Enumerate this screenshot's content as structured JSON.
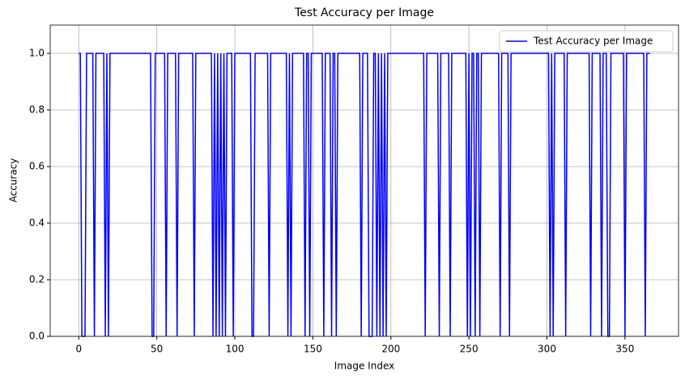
{
  "chart_data": {
    "type": "line",
    "title": "Test Accuracy per Image",
    "xlabel": "Image Index",
    "ylabel": "Accuracy",
    "x": [
      0,
      1,
      2,
      3,
      4,
      5,
      6,
      7,
      8,
      9,
      10,
      11,
      12,
      13,
      14,
      15,
      16,
      17,
      18,
      19,
      20,
      21,
      22,
      23,
      24,
      25,
      26,
      27,
      28,
      29,
      30,
      31,
      32,
      33,
      34,
      35,
      36,
      37,
      38,
      39,
      40,
      41,
      42,
      43,
      44,
      45,
      46,
      47,
      48,
      49,
      50,
      51,
      52,
      53,
      54,
      55,
      56,
      57,
      58,
      59,
      60,
      61,
      62,
      63,
      64,
      65,
      66,
      67,
      68,
      69,
      70,
      71,
      72,
      73,
      74,
      75,
      76,
      77,
      78,
      79,
      80,
      81,
      82,
      83,
      84,
      85,
      86,
      87,
      88,
      89,
      90,
      91,
      92,
      93,
      94,
      95,
      96,
      97,
      98,
      99,
      100,
      101,
      102,
      103,
      104,
      105,
      106,
      107,
      108,
      109,
      110,
      111,
      112,
      113,
      114,
      115,
      116,
      117,
      118,
      119,
      120,
      121,
      122,
      123,
      124,
      125,
      126,
      127,
      128,
      129,
      130,
      131,
      132,
      133,
      134,
      135,
      136,
      137,
      138,
      139,
      140,
      141,
      142,
      143,
      144,
      145,
      146,
      147,
      148,
      149,
      150,
      151,
      152,
      153,
      154,
      155,
      156,
      157,
      158,
      159,
      160,
      161,
      162,
      163,
      164,
      165,
      166,
      167,
      168,
      169,
      170,
      171,
      172,
      173,
      174,
      175,
      176,
      177,
      178,
      179,
      180,
      181,
      182,
      183,
      184,
      185,
      186,
      187,
      188,
      189,
      190,
      191,
      192,
      193,
      194,
      195,
      196,
      197,
      198,
      199,
      200,
      201,
      202,
      203,
      204,
      205,
      206,
      207,
      208,
      209,
      210,
      211,
      212,
      213,
      214,
      215,
      216,
      217,
      218,
      219,
      220,
      221,
      222,
      223,
      224,
      225,
      226,
      227,
      228,
      229,
      230,
      231,
      232,
      233,
      234,
      235,
      236,
      237,
      238,
      239,
      240,
      241,
      242,
      243,
      244,
      245,
      246,
      247,
      248,
      249,
      250,
      251,
      252,
      253,
      254,
      255,
      256,
      257,
      258,
      259,
      260,
      261,
      262,
      263,
      264,
      265,
      266,
      267,
      268,
      269,
      270,
      271,
      272,
      273,
      274,
      275,
      276,
      277,
      278,
      279,
      280,
      281,
      282,
      283,
      284,
      285,
      286,
      287,
      288,
      289,
      290,
      291,
      292,
      293,
      294,
      295,
      296,
      297,
      298,
      299,
      300,
      301,
      302,
      303,
      304,
      305,
      306,
      307,
      308,
      309,
      310,
      311,
      312,
      313,
      314,
      315,
      316,
      317,
      318,
      319,
      320,
      321,
      322,
      323,
      324,
      325,
      326,
      327,
      328,
      329,
      330,
      331,
      332,
      333,
      334,
      335,
      336,
      337,
      338,
      339,
      340,
      341,
      342,
      343,
      344,
      345,
      346,
      347,
      348,
      349,
      350,
      351,
      352,
      353,
      354,
      355,
      356,
      357,
      358,
      359,
      360,
      361,
      362,
      363,
      364,
      365,
      366
    ],
    "series": [
      {
        "name": "Test Accuracy per Image",
        "color": "#0000ff",
        "values": [
          1,
          1,
          0,
          0,
          0,
          1,
          1,
          1,
          1,
          1,
          0,
          1,
          1,
          1,
          1,
          1,
          1,
          0,
          1,
          0,
          1,
          1,
          1,
          1,
          1,
          1,
          1,
          1,
          1,
          1,
          1,
          1,
          1,
          1,
          1,
          1,
          1,
          1,
          1,
          1,
          1,
          1,
          1,
          1,
          1,
          1,
          1,
          0,
          0,
          1,
          1,
          1,
          1,
          1,
          1,
          1,
          0,
          1,
          1,
          1,
          1,
          1,
          1,
          0,
          1,
          1,
          1,
          1,
          1,
          1,
          1,
          1,
          1,
          1,
          0,
          1,
          1,
          1,
          1,
          1,
          1,
          1,
          1,
          1,
          1,
          1,
          0,
          1,
          0,
          1,
          0,
          1,
          0,
          1,
          0,
          1,
          1,
          1,
          1,
          0,
          1,
          1,
          1,
          1,
          1,
          1,
          1,
          1,
          1,
          1,
          1,
          0,
          0,
          1,
          1,
          1,
          1,
          1,
          1,
          1,
          1,
          1,
          0,
          1,
          1,
          1,
          1,
          1,
          1,
          1,
          1,
          1,
          1,
          1,
          0,
          1,
          0,
          1,
          1,
          1,
          1,
          1,
          1,
          1,
          1,
          0,
          1,
          1,
          0,
          1,
          1,
          1,
          1,
          1,
          1,
          1,
          1,
          0,
          1,
          1,
          1,
          1,
          0,
          1,
          1,
          0,
          1,
          1,
          1,
          1,
          1,
          1,
          1,
          1,
          1,
          1,
          1,
          1,
          1,
          1,
          1,
          0,
          1,
          1,
          1,
          1,
          0,
          0,
          0,
          1,
          1,
          0,
          1,
          0,
          1,
          0,
          1,
          0,
          1,
          1,
          1,
          1,
          1,
          1,
          1,
          1,
          1,
          1,
          1,
          1,
          1,
          1,
          1,
          1,
          1,
          1,
          1,
          1,
          1,
          1,
          1,
          1,
          0,
          1,
          1,
          1,
          1,
          1,
          1,
          1,
          1,
          0,
          1,
          1,
          1,
          1,
          1,
          1,
          0,
          1,
          1,
          1,
          1,
          1,
          1,
          1,
          1,
          1,
          1,
          0,
          1,
          0,
          1,
          1,
          0,
          1,
          1,
          0,
          1,
          1,
          1,
          1,
          1,
          1,
          1,
          1,
          1,
          1,
          1,
          1,
          0,
          1,
          1,
          1,
          1,
          1,
          0,
          1,
          1,
          1,
          1,
          1,
          1,
          1,
          1,
          1,
          1,
          1,
          1,
          1,
          1,
          1,
          1,
          1,
          1,
          1,
          1,
          1,
          1,
          1,
          1,
          1,
          0,
          1,
          0,
          1,
          1,
          1,
          1,
          1,
          1,
          1,
          0,
          1,
          1,
          1,
          1,
          1,
          1,
          1,
          1,
          1,
          1,
          1,
          1,
          1,
          1,
          1,
          0,
          1,
          1,
          1,
          1,
          1,
          1,
          0,
          1,
          1,
          1,
          0,
          0,
          1,
          1,
          1,
          1,
          1,
          1,
          1,
          1,
          1,
          0,
          1,
          1,
          1,
          1,
          1,
          1,
          1,
          1,
          1,
          1,
          1,
          1,
          0,
          1,
          1,
          1
        ]
      }
    ],
    "xlim": [
      -18.3,
      384.3
    ],
    "xticks": [
      0,
      50,
      100,
      150,
      200,
      250,
      300,
      350
    ],
    "ylim": [
      0,
      1.1
    ],
    "yticks": [
      {
        "value": 0,
        "label": "0.0"
      },
      {
        "value": 0.2,
        "label": "0.2"
      },
      {
        "value": 0.4,
        "label": "0.4"
      },
      {
        "value": 0.6,
        "label": "0.6"
      },
      {
        "value": 0.8,
        "label": "0.8"
      },
      {
        "value": 1,
        "label": "1.0"
      }
    ],
    "grid": true,
    "legend": "upper right"
  }
}
